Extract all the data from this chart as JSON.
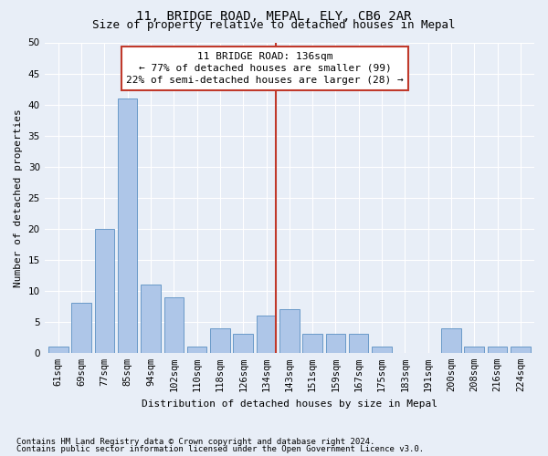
{
  "title": "11, BRIDGE ROAD, MEPAL, ELY, CB6 2AR",
  "subtitle": "Size of property relative to detached houses in Mepal",
  "xlabel": "Distribution of detached houses by size in Mepal",
  "ylabel": "Number of detached properties",
  "footnote1": "Contains HM Land Registry data © Crown copyright and database right 2024.",
  "footnote2": "Contains public sector information licensed under the Open Government Licence v3.0.",
  "categories": [
    "61sqm",
    "69sqm",
    "77sqm",
    "85sqm",
    "94sqm",
    "102sqm",
    "110sqm",
    "118sqm",
    "126sqm",
    "134sqm",
    "143sqm",
    "151sqm",
    "159sqm",
    "167sqm",
    "175sqm",
    "183sqm",
    "191sqm",
    "200sqm",
    "208sqm",
    "216sqm",
    "224sqm"
  ],
  "values": [
    1,
    8,
    20,
    41,
    11,
    9,
    1,
    4,
    3,
    6,
    7,
    3,
    3,
    3,
    1,
    0,
    0,
    4,
    1,
    1,
    1
  ],
  "bar_color": "#aec6e8",
  "bar_edge_color": "#5a8fc2",
  "ylim": [
    0,
    50
  ],
  "yticks": [
    0,
    5,
    10,
    15,
    20,
    25,
    30,
    35,
    40,
    45,
    50
  ],
  "property_label": "11 BRIDGE ROAD: 136sqm",
  "annotation_line1": "← 77% of detached houses are smaller (99)",
  "annotation_line2": "22% of semi-detached houses are larger (28) →",
  "vline_color": "#c0392b",
  "box_edge_color": "#c0392b",
  "bg_color": "#e8eef7",
  "fig_bg_color": "#e8eef7",
  "grid_color": "#ffffff",
  "title_fontsize": 10,
  "subtitle_fontsize": 9,
  "axis_label_fontsize": 8,
  "tick_fontsize": 7.5,
  "annotation_fontsize": 8,
  "footnote_fontsize": 6.5,
  "vline_bar_index": 9
}
